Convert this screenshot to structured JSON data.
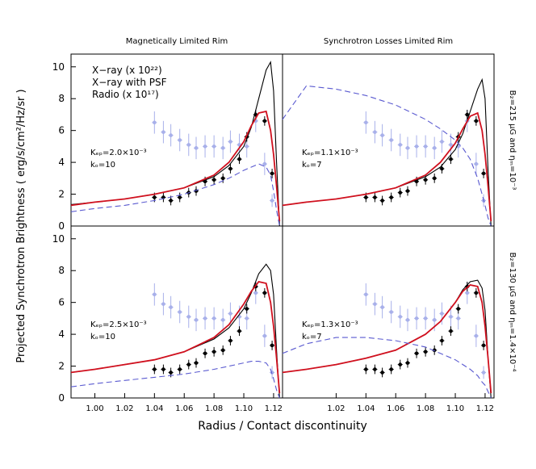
{
  "chart_data": [
    {
      "type": "line",
      "title": "Magnetically Limited Rim",
      "annotations": [
        "Kₑₚ=2.0×10⁻³",
        "kₒ=10"
      ],
      "x": [
        0.984,
        1.0,
        1.02,
        1.04,
        1.06,
        1.08,
        1.09,
        1.1,
        1.105,
        1.11,
        1.115,
        1.118,
        1.12,
        1.122,
        1.124
      ],
      "series": [
        {
          "name": "X−ray (x 10²²)",
          "color": "#000000",
          "dash": false,
          "values": [
            1.35,
            1.5,
            1.7,
            2.0,
            2.4,
            3.1,
            3.8,
            5.0,
            6.2,
            8.0,
            9.8,
            10.3,
            8.5,
            4,
            0
          ]
        },
        {
          "name": "X−ray with PSF",
          "color": "#d0101e",
          "dash": false,
          "values": [
            1.3,
            1.5,
            1.7,
            2.0,
            2.4,
            3.2,
            4.0,
            5.3,
            6.3,
            7.1,
            7.2,
            6.0,
            4.5,
            2.5,
            0.3
          ]
        },
        {
          "name": "Radio (x 10¹⁷)",
          "color": "#5a5ad0",
          "dash": true,
          "values": [
            0.9,
            1.1,
            1.3,
            1.6,
            2.0,
            2.6,
            3.0,
            3.5,
            3.7,
            3.9,
            3.7,
            3.2,
            2.2,
            1,
            0
          ]
        }
      ],
      "xlim": [
        0.984,
        1.126
      ],
      "ylim": [
        0,
        10.8
      ],
      "yticks": [
        0,
        2,
        4,
        6,
        8,
        10
      ]
    },
    {
      "type": "line",
      "title": "Synchrotron Losses Limited Rim",
      "annotations": [
        "Kₑₚ=1.1×10⁻³",
        "kₒ=7"
      ],
      "side_label": "B₂=215 μG and ηₘ=10⁻³",
      "x": [
        0.984,
        1.0,
        1.02,
        1.04,
        1.06,
        1.08,
        1.09,
        1.1,
        1.105,
        1.11,
        1.115,
        1.118,
        1.12,
        1.122,
        1.124
      ],
      "series": [
        {
          "color": "#000000",
          "dash": false,
          "values": [
            1.3,
            1.5,
            1.7,
            2.0,
            2.4,
            3.1,
            3.7,
            4.8,
            5.8,
            7.2,
            8.6,
            9.2,
            8,
            3.5,
            0
          ]
        },
        {
          "color": "#d0101e",
          "dash": false,
          "values": [
            1.3,
            1.5,
            1.7,
            2.0,
            2.4,
            3.2,
            4.0,
            5.2,
            6.1,
            6.9,
            7.1,
            6.0,
            4.5,
            2.5,
            0.3
          ]
        },
        {
          "color": "#5a5ad0",
          "dash": true,
          "values": [
            6.7,
            8.8,
            8.6,
            8.2,
            7.6,
            6.7,
            6.1,
            5.4,
            4.9,
            4.2,
            3.0,
            2.0,
            1.3,
            0.5,
            0
          ]
        }
      ],
      "xlim": [
        0.984,
        1.126
      ],
      "ylim": [
        0,
        10.8
      ]
    },
    {
      "type": "line",
      "annotations": [
        "Kₑₚ=2.5×10⁻³",
        "kₒ=10"
      ],
      "x": [
        0.984,
        1.0,
        1.02,
        1.04,
        1.06,
        1.08,
        1.09,
        1.1,
        1.105,
        1.11,
        1.115,
        1.118,
        1.12,
        1.122,
        1.124
      ],
      "series": [
        {
          "color": "#000000",
          "dash": false,
          "values": [
            1.6,
            1.8,
            2.1,
            2.4,
            2.9,
            3.7,
            4.4,
            5.6,
            6.6,
            7.8,
            8.4,
            8.0,
            6.5,
            3,
            0
          ]
        },
        {
          "color": "#d0101e",
          "dash": false,
          "values": [
            1.6,
            1.8,
            2.1,
            2.4,
            2.9,
            3.8,
            4.6,
            5.9,
            6.7,
            7.3,
            7.2,
            6.0,
            4.5,
            2.5,
            0.3
          ]
        },
        {
          "color": "#5a5ad0",
          "dash": true,
          "values": [
            0.7,
            0.9,
            1.1,
            1.3,
            1.5,
            1.8,
            2.0,
            2.2,
            2.3,
            2.3,
            2.2,
            1.8,
            1.2,
            0.5,
            0
          ]
        }
      ],
      "xlim": [
        0.984,
        1.126
      ],
      "ylim": [
        0,
        10.8
      ],
      "yticks": [
        0,
        2,
        4,
        6,
        8,
        10
      ],
      "xticks": [
        {
          "value": 1.0,
          "label": "1.00"
        },
        {
          "value": 1.02,
          "label": "1.02"
        },
        {
          "value": 1.04,
          "label": "1.04"
        },
        {
          "value": 1.06,
          "label": "1.06"
        },
        {
          "value": 1.08,
          "label": "1.08"
        },
        {
          "value": 1.1,
          "label": "1.10"
        },
        {
          "value": 1.12,
          "label": "1.12"
        }
      ]
    },
    {
      "type": "line",
      "annotations": [
        "Kₑₚ=1.3×10⁻³",
        "kₒ=7"
      ],
      "side_label": "B₂=130 μG and ηₘ=1.4×10⁻⁴",
      "x": [
        0.984,
        1.0,
        1.02,
        1.04,
        1.06,
        1.08,
        1.09,
        1.1,
        1.105,
        1.11,
        1.115,
        1.118,
        1.12,
        1.122,
        1.124
      ],
      "series": [
        {
          "color": "#000000",
          "dash": false,
          "values": [
            1.6,
            1.8,
            2.1,
            2.5,
            3.0,
            4.0,
            4.8,
            6.0,
            6.8,
            7.3,
            7.4,
            6.9,
            5.5,
            2.5,
            0
          ]
        },
        {
          "color": "#d0101e",
          "dash": false,
          "values": [
            1.6,
            1.8,
            2.1,
            2.5,
            3.0,
            4.0,
            4.8,
            6.0,
            6.7,
            7.1,
            7.0,
            6.0,
            4.5,
            2.5,
            0.3
          ]
        },
        {
          "color": "#5a5ad0",
          "dash": true,
          "values": [
            2.8,
            3.4,
            3.8,
            3.8,
            3.6,
            3.2,
            2.8,
            2.4,
            2.1,
            1.8,
            1.4,
            1.0,
            0.8,
            0.4,
            0
          ]
        }
      ],
      "xlim": [
        0.984,
        1.126
      ],
      "ylim": [
        0,
        10.8
      ],
      "xticks": [
        {
          "value": 1.02,
          "label": "1.02"
        },
        {
          "value": 1.04,
          "label": "1.04"
        },
        {
          "value": 1.06,
          "label": "1.06"
        },
        {
          "value": 1.08,
          "label": "1.08"
        },
        {
          "value": 1.1,
          "label": "1.10"
        },
        {
          "value": 1.12,
          "label": "1.12"
        }
      ]
    }
  ],
  "observations": {
    "x": [
      1.04,
      1.046,
      1.051,
      1.057,
      1.063,
      1.068,
      1.074,
      1.08,
      1.086,
      1.091,
      1.097,
      1.102,
      1.108,
      1.114,
      1.119
    ],
    "xray": [
      1.8,
      1.8,
      1.6,
      1.8,
      2.1,
      2.2,
      2.8,
      2.9,
      3.0,
      3.6,
      4.2,
      5.6,
      7.0,
      6.6,
      3.3
    ],
    "xray_err": [
      0.3,
      0.3,
      0.3,
      0.3,
      0.3,
      0.3,
      0.3,
      0.3,
      0.3,
      0.3,
      0.3,
      0.3,
      0.3,
      0.3,
      0.3
    ],
    "xray_color": "#000000",
    "radio": [
      6.5,
      5.9,
      5.7,
      5.4,
      5.1,
      4.9,
      5.0,
      5.0,
      4.9,
      5.3,
      5.1,
      5.0,
      6.6,
      3.9,
      1.6
    ],
    "radio_err": [
      0.7,
      0.7,
      0.7,
      0.7,
      0.7,
      0.7,
      0.7,
      0.7,
      0.7,
      0.7,
      0.7,
      0.7,
      0.7,
      0.7,
      0.4
    ],
    "radio_color": "#a8b0ea"
  },
  "ylabel": "Projected Synchrotron Brightness ( erg/s/cm²/Hz/sr )",
  "xlabel": "Radius / Contact discontinuity"
}
